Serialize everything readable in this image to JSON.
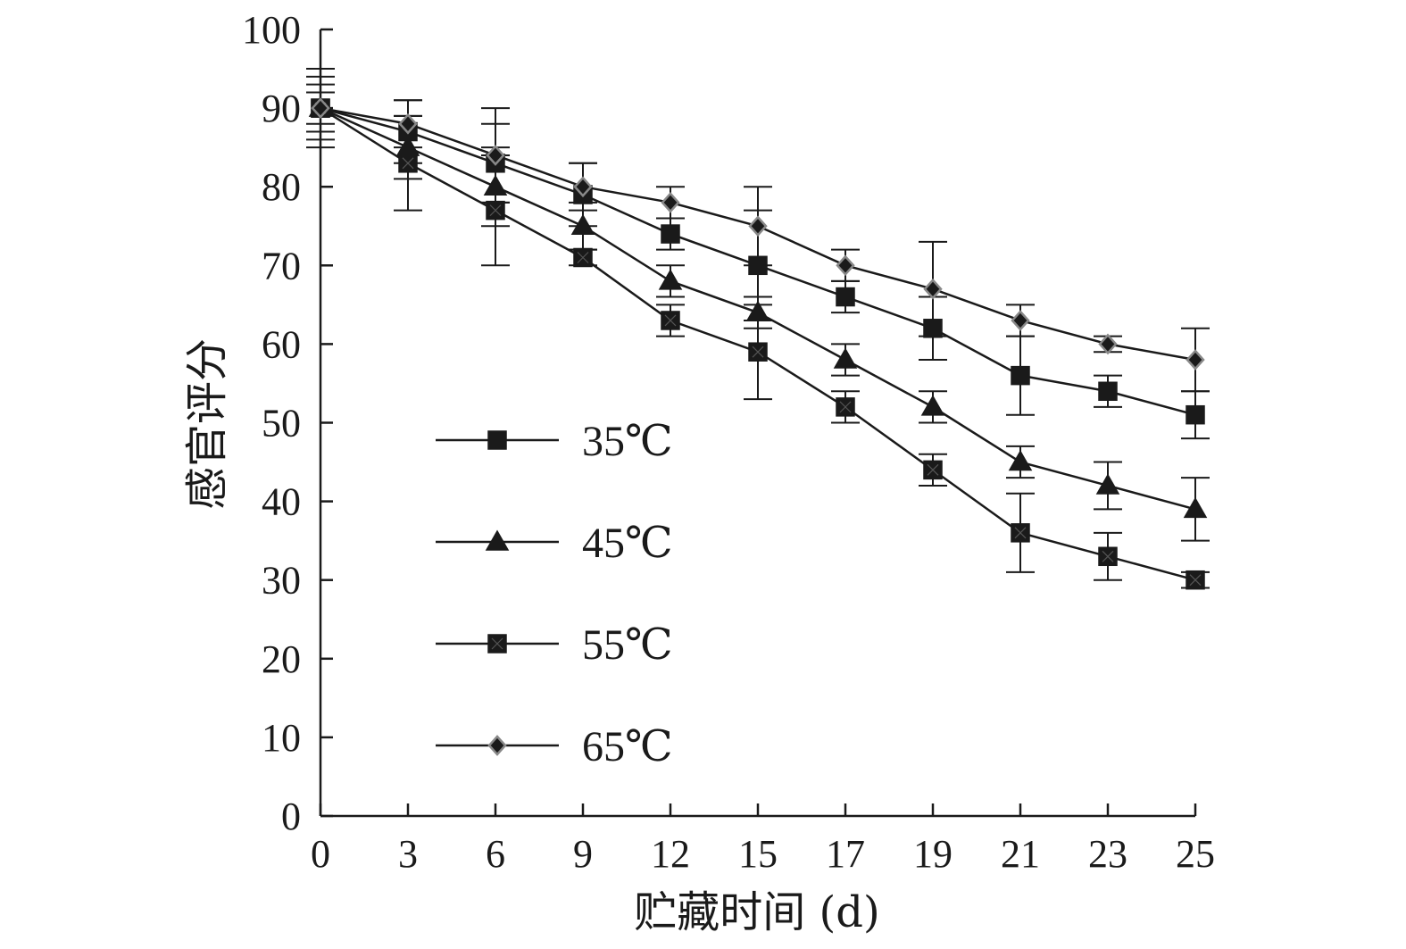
{
  "chart_data": {
    "type": "line",
    "title": "",
    "xlabel": "贮藏时间 (d)",
    "ylabel": "感官评分",
    "x": [
      0,
      3,
      6,
      9,
      12,
      15,
      17,
      19,
      21,
      23,
      25
    ],
    "x_tick_labels": [
      "0",
      "3",
      "6",
      "9",
      "12",
      "15",
      "17",
      "19",
      "21",
      "23",
      "25"
    ],
    "y_ticks": [
      0,
      10,
      20,
      30,
      40,
      50,
      60,
      70,
      80,
      90,
      100
    ],
    "y_tick_labels": [
      "0",
      "10",
      "20",
      "30",
      "40",
      "50",
      "60",
      "70",
      "80",
      "90",
      "100"
    ],
    "ylim": [
      0,
      100
    ],
    "grid": false,
    "legend_position": "left-center",
    "series": [
      {
        "name": "35℃",
        "marker": "square",
        "color": "#1a1a1a",
        "values": [
          90,
          87,
          83,
          79,
          74,
          70,
          66,
          62,
          56,
          54,
          51
        ],
        "errors": [
          4,
          4,
          5,
          4,
          2,
          7,
          2,
          4,
          5,
          2,
          3
        ]
      },
      {
        "name": "45℃",
        "marker": "triangle",
        "color": "#1a1a1a",
        "values": [
          90,
          85,
          80,
          75,
          68,
          64,
          58,
          52,
          45,
          42,
          39
        ],
        "errors": [
          3,
          4,
          5,
          3,
          2,
          2,
          2,
          2,
          2,
          3,
          4
        ]
      },
      {
        "name": "55℃",
        "marker": "square-x",
        "color": "#1a1a1a",
        "values": [
          90,
          83,
          77,
          71,
          63,
          59,
          52,
          44,
          36,
          33,
          30
        ],
        "errors": [
          5,
          6,
          7,
          1,
          2,
          6,
          2,
          2,
          5,
          3,
          1
        ]
      },
      {
        "name": "65℃",
        "marker": "diamond",
        "color": "#1a1a1a",
        "marker_edge": "#888888",
        "values": [
          90,
          88,
          84,
          80,
          78,
          75,
          70,
          67,
          63,
          60,
          58
        ],
        "errors": [
          2,
          3,
          6,
          3,
          2,
          5,
          2,
          6,
          2,
          1,
          4
        ]
      }
    ]
  }
}
